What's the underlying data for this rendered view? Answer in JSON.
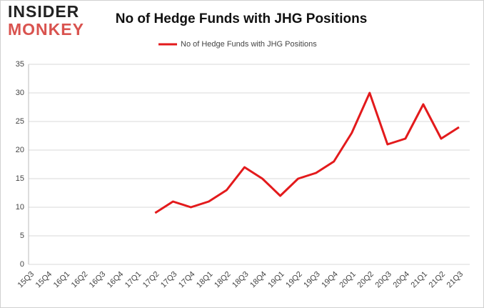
{
  "logo": {
    "line1": "INSIDER",
    "line2": "MONKEY"
  },
  "chart_data": {
    "type": "line",
    "title": "No of Hedge Funds with JHG Positions",
    "categories": [
      "15Q3",
      "15Q4",
      "16Q1",
      "16Q2",
      "16Q3",
      "16Q4",
      "17Q1",
      "17Q2",
      "17Q3",
      "17Q4",
      "18Q1",
      "18Q2",
      "18Q3",
      "18Q4",
      "19Q1",
      "19Q2",
      "19Q3",
      "19Q4",
      "20Q1",
      "20Q2",
      "20Q3",
      "20Q4",
      "21Q1",
      "21Q2",
      "21Q3"
    ],
    "series": [
      {
        "name": "No of Hedge Funds with JHG Positions",
        "color": "#e31a1c",
        "values": [
          null,
          null,
          null,
          null,
          null,
          null,
          null,
          9,
          11,
          10,
          11,
          13,
          17,
          15,
          12,
          15,
          16,
          18,
          23,
          30,
          21,
          22,
          28,
          22,
          24
        ]
      }
    ],
    "ylim": [
      0,
      35
    ],
    "yticks": [
      0,
      5,
      10,
      15,
      20,
      25,
      30,
      35
    ],
    "grid": true,
    "legend": "top"
  }
}
